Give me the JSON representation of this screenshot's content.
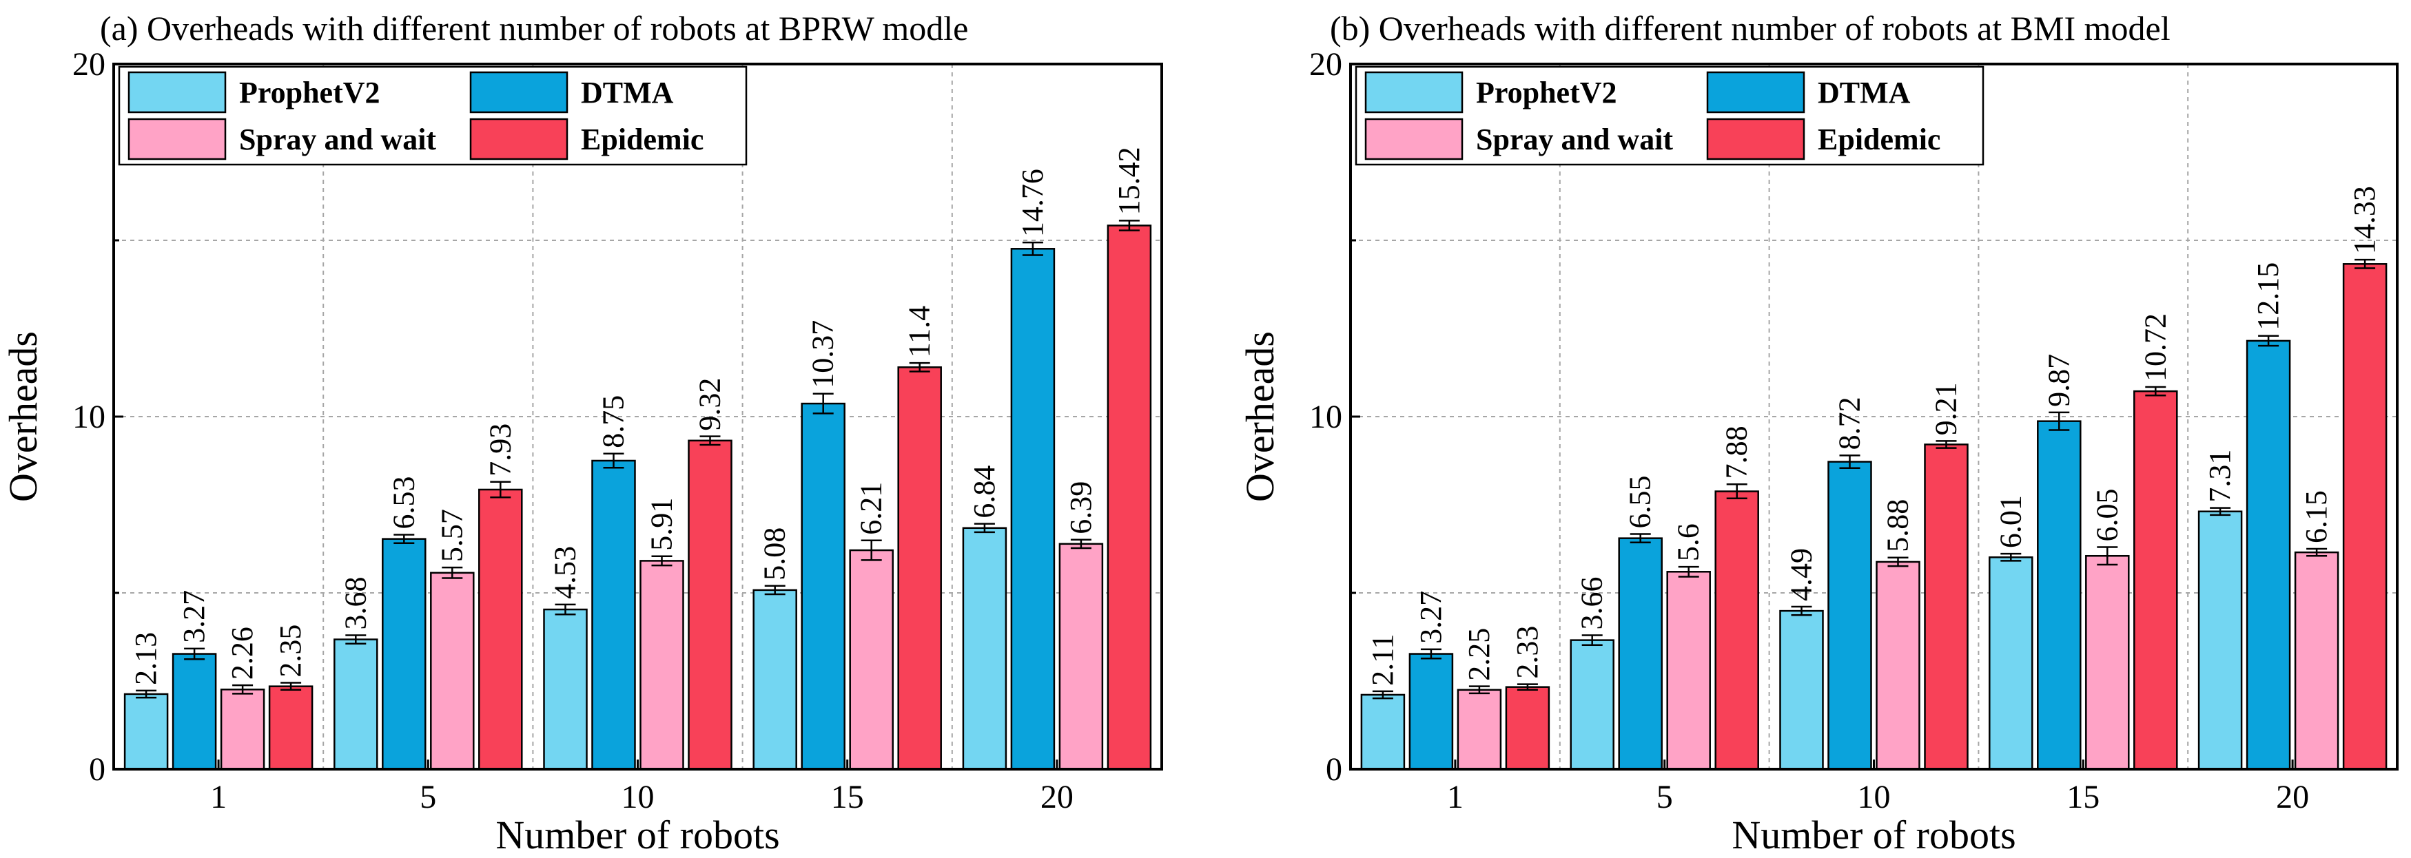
{
  "figure": {
    "name": "robots-overheads-figure"
  },
  "legend_labels": [
    "ProphetV2",
    "DTMA",
    "Spray and wait",
    "Epidemic"
  ],
  "colors": {
    "ProphetV2": "#73d6f2",
    "DTMA": "#0aa3dc",
    "Spray and wait": "#ffa3c6",
    "Epidemic": "#f84158",
    "grid": "#a6a6a6",
    "axis": "#000000"
  },
  "chart_data": [
    {
      "type": "bar",
      "title": "(a) Overheads with different number of robots at BPRW modle",
      "xlabel": "Number of robots",
      "ylabel": "Overheads",
      "categories": [
        "1",
        "5",
        "10",
        "15",
        "20"
      ],
      "ylim": [
        0,
        20
      ],
      "yticks": [
        0,
        10,
        20
      ],
      "grid": true,
      "legend_position": "top-left",
      "series": [
        {
          "name": "ProphetV2",
          "values": [
            2.13,
            3.68,
            4.53,
            5.08,
            6.84
          ],
          "labels": [
            "2.13",
            "3.68",
            "4.53",
            "5.08",
            "6.84"
          ],
          "errors": [
            0.1,
            0.12,
            0.14,
            0.12,
            0.12
          ]
        },
        {
          "name": "DTMA",
          "values": [
            3.27,
            6.53,
            8.75,
            10.37,
            14.76
          ],
          "labels": [
            "3.27",
            "6.53",
            "8.75",
            "10.37",
            "14.76"
          ],
          "errors": [
            0.15,
            0.12,
            0.2,
            0.28,
            0.18
          ]
        },
        {
          "name": "Spray and wait",
          "values": [
            2.26,
            5.57,
            5.91,
            6.21,
            6.39
          ],
          "labels": [
            "2.26",
            "5.57",
            "5.91",
            "6.21",
            "6.39"
          ],
          "errors": [
            0.12,
            0.15,
            0.13,
            0.28,
            0.12
          ]
        },
        {
          "name": "Epidemic",
          "values": [
            2.35,
            7.93,
            9.32,
            11.4,
            15.42
          ],
          "labels": [
            "2.35",
            "7.93",
            "9.32",
            "11.4",
            "15.42"
          ],
          "errors": [
            0.1,
            0.22,
            0.12,
            0.12,
            0.14
          ]
        }
      ]
    },
    {
      "type": "bar",
      "title": "(b) Overheads with different number of robots at BMI model",
      "xlabel": "Number of robots",
      "ylabel": "Overheads",
      "categories": [
        "1",
        "5",
        "10",
        "15",
        "20"
      ],
      "ylim": [
        0,
        20
      ],
      "yticks": [
        0,
        10,
        20
      ],
      "grid": true,
      "legend_position": "top-left",
      "series": [
        {
          "name": "ProphetV2",
          "values": [
            2.11,
            3.66,
            4.49,
            6.01,
            7.31
          ],
          "labels": [
            "2.11",
            "3.66",
            "4.49",
            "6.01",
            "7.31"
          ],
          "errors": [
            0.1,
            0.14,
            0.12,
            0.1,
            0.1
          ]
        },
        {
          "name": "DTMA",
          "values": [
            3.27,
            6.55,
            8.72,
            9.87,
            12.15
          ],
          "labels": [
            "3.27",
            "6.55",
            "8.72",
            "9.87",
            "12.15"
          ],
          "errors": [
            0.13,
            0.12,
            0.18,
            0.25,
            0.14
          ]
        },
        {
          "name": "Spray and wait",
          "values": [
            2.25,
            5.6,
            5.88,
            6.05,
            6.15
          ],
          "labels": [
            "2.25",
            "5.6",
            "5.88",
            "6.05",
            "6.15"
          ],
          "errors": [
            0.1,
            0.14,
            0.12,
            0.25,
            0.1
          ]
        },
        {
          "name": "Epidemic",
          "values": [
            2.33,
            7.88,
            9.21,
            10.72,
            14.33
          ],
          "labels": [
            "2.33",
            "7.88",
            "9.21",
            "10.72",
            "14.33"
          ],
          "errors": [
            0.08,
            0.2,
            0.1,
            0.12,
            0.12
          ]
        }
      ]
    }
  ]
}
